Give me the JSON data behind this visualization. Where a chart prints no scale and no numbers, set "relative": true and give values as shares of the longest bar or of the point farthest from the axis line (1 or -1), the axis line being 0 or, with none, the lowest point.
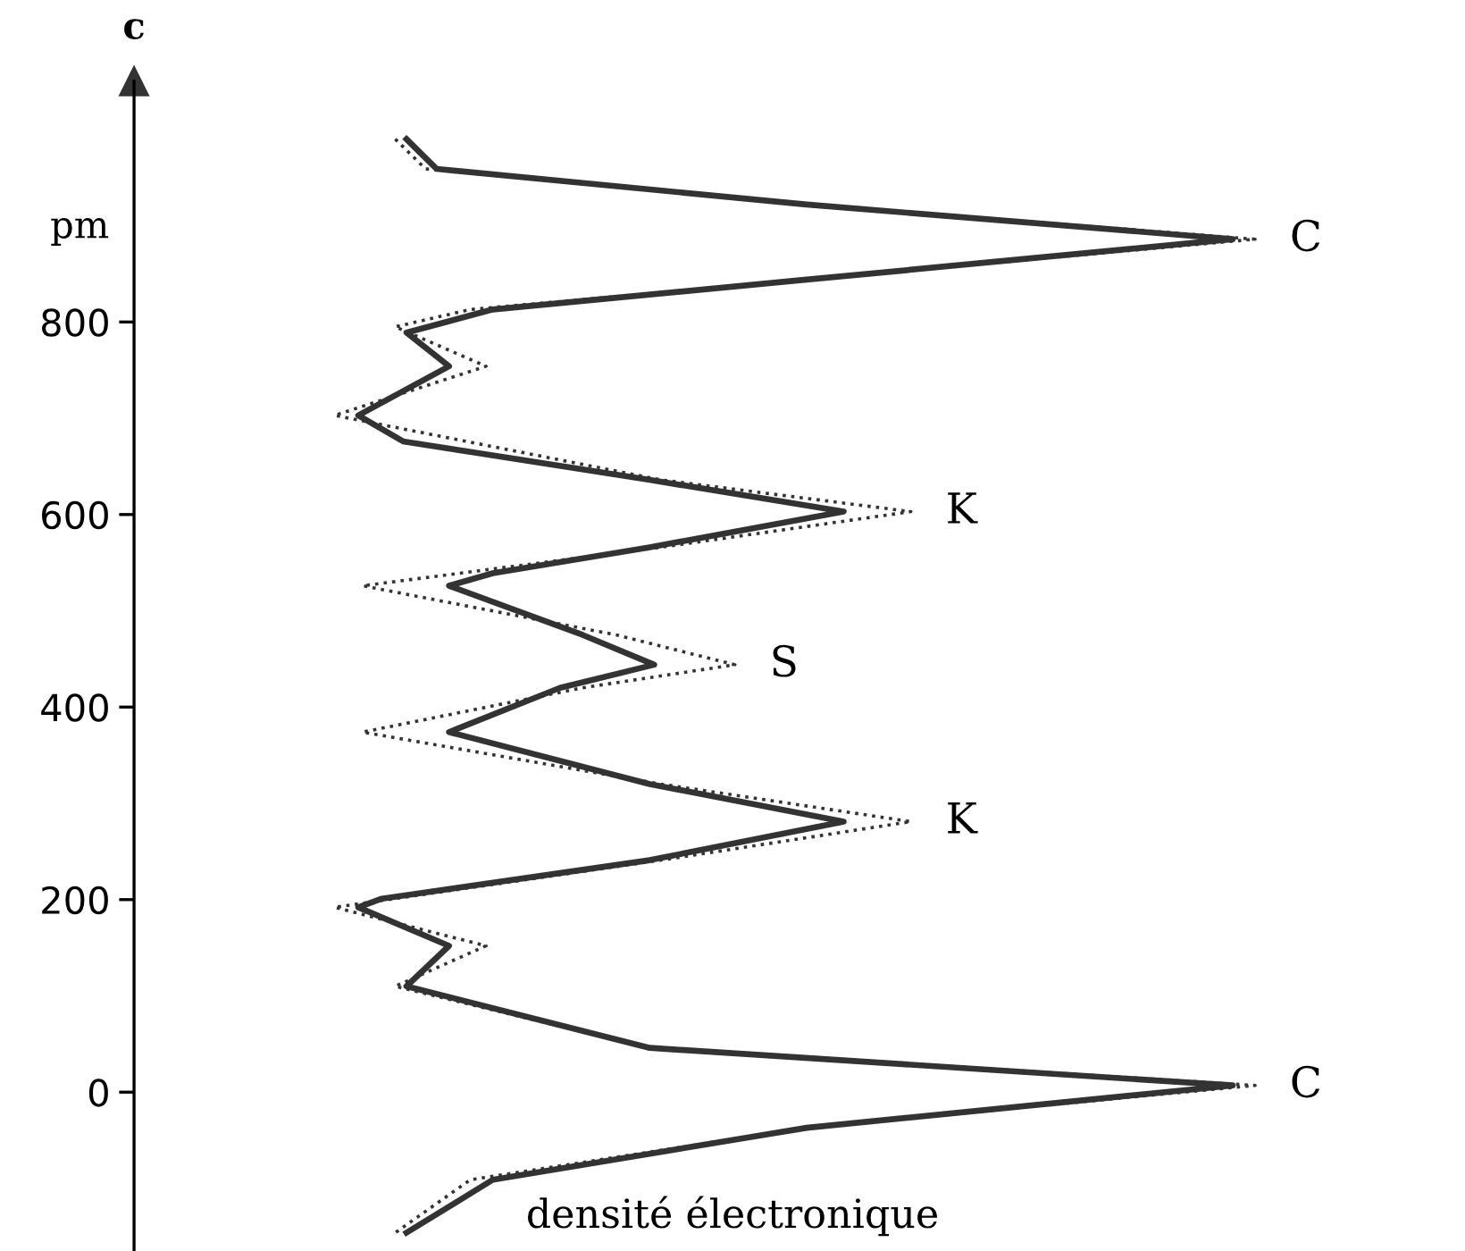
{
  "chart_data": {
    "type": "line",
    "orientation": "horizontal",
    "relative": true,
    "xlabel": "densité électronique",
    "ylabel": "c",
    "ylim": [
      -165,
      1050
    ],
    "yticks": [
      0,
      200,
      400,
      600,
      800
    ],
    "grid": false,
    "legend": false,
    "marker": "none",
    "series": [
      {
        "color": "#333333",
        "line_style": "solid",
        "x": [
          990,
          959,
          922,
          886,
          844,
          813,
          789,
          754,
          703,
          676,
          636,
          603,
          566,
          539,
          526,
          475,
          444,
          420,
          374,
          320,
          281,
          241,
          201,
          192,
          152,
          110,
          46,
          7,
          -37,
          -91,
          -146
        ],
        "values": [
          0.243,
          0.27,
          0.6,
          0.98,
          0.6,
          0.32,
          0.243,
          0.281,
          0.2,
          0.24,
          0.46,
          0.633,
          0.46,
          0.32,
          0.281,
          0.4,
          0.464,
          0.38,
          0.281,
          0.46,
          0.633,
          0.46,
          0.221,
          0.2,
          0.281,
          0.243,
          0.46,
          0.98,
          0.6,
          0.32,
          0.243
        ]
      },
      {
        "color": "#333333",
        "line_style": "dotted",
        "x": [
          990,
          959,
          922,
          886,
          844,
          813,
          795,
          754,
          703,
          636,
          603,
          566,
          526,
          475,
          444,
          420,
          374,
          320,
          281,
          241,
          192,
          152,
          110,
          46,
          7,
          -37,
          -91,
          -146
        ],
        "values": [
          0.233,
          0.26,
          0.6,
          1.0,
          0.6,
          0.3,
          0.233,
          0.314,
          0.179,
          0.47,
          0.693,
          0.47,
          0.204,
          0.43,
          0.536,
          0.4,
          0.204,
          0.47,
          0.693,
          0.47,
          0.179,
          0.314,
          0.233,
          0.46,
          1.0,
          0.6,
          0.3,
          0.233
        ]
      }
    ],
    "annotations": [
      "pm",
      {
        "text": "C",
        "x": 1.0,
        "y": 886
      },
      {
        "text": "K",
        "x": 0.693,
        "y": 603
      },
      {
        "text": "S",
        "x": 0.536,
        "y": 444
      },
      {
        "text": "K",
        "x": 0.693,
        "y": 281
      },
      {
        "text": "C",
        "x": 1.0,
        "y": 7
      }
    ]
  }
}
